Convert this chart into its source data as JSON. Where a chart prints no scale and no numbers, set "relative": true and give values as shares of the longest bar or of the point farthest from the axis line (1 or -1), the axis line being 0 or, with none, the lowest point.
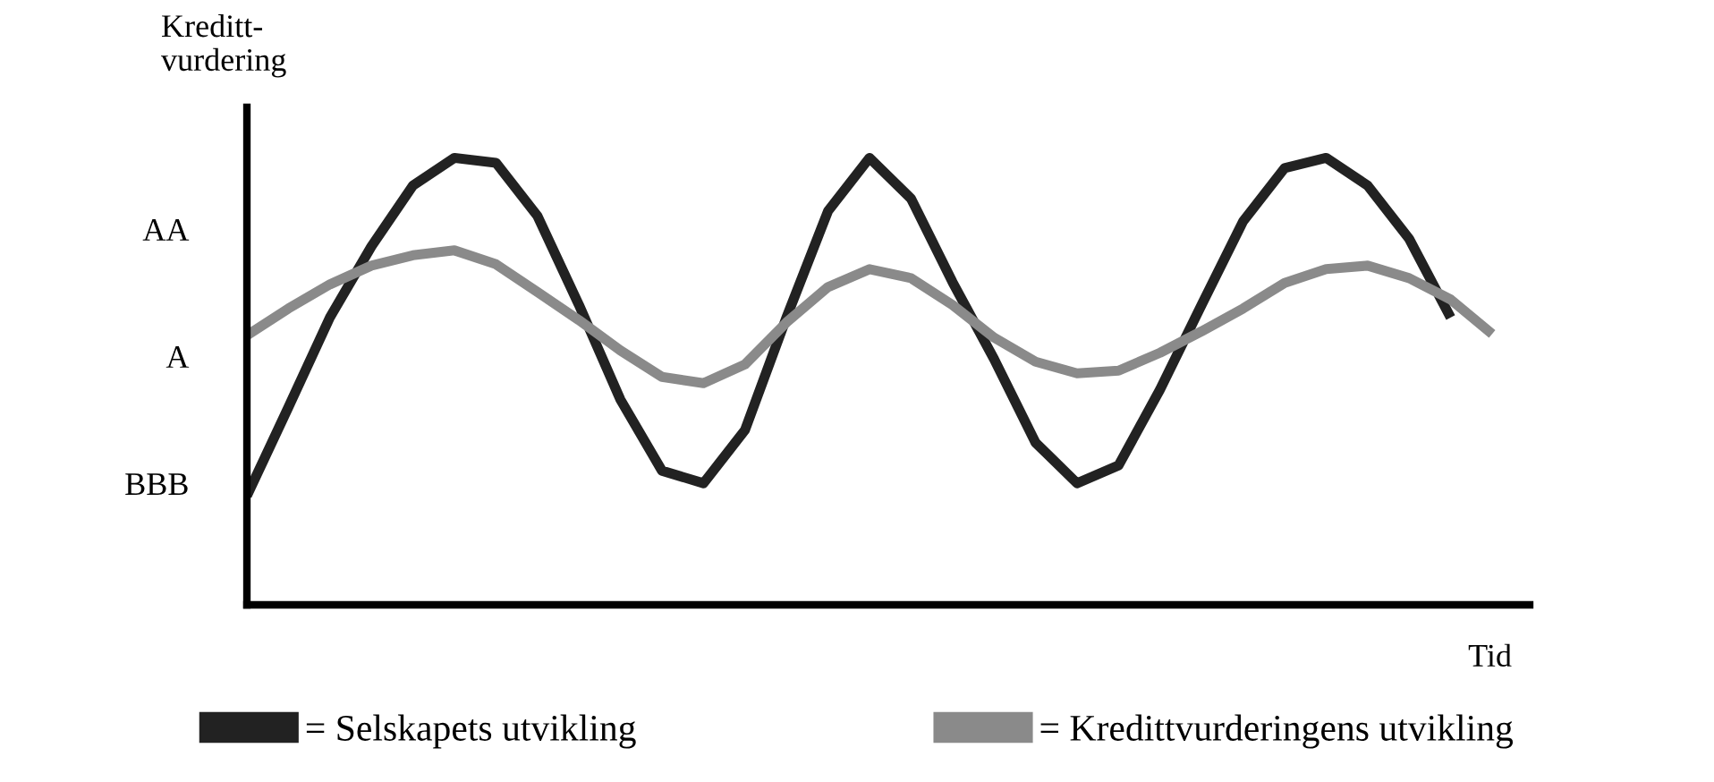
{
  "chart_data": {
    "type": "line",
    "xlabel": "Tid",
    "ylabel": "Kreditt-\nvurdering",
    "relative": true,
    "categories": [
      null,
      null,
      null,
      null,
      null,
      null,
      null,
      null,
      null,
      null,
      null,
      null,
      null,
      null,
      null,
      null,
      null,
      null,
      null,
      null,
      null,
      null,
      null,
      null,
      null,
      null,
      null,
      null,
      null,
      null,
      null
    ],
    "series": [
      {
        "name": "= Selskapets utvikling",
        "color": "#222222",
        "values": [
          0.244,
          0.442,
          0.643,
          0.802,
          0.938,
          1,
          0.989,
          0.87,
          0.671,
          0.459,
          0.3,
          0.272,
          0.391,
          0.643,
          0.881,
          1,
          0.909,
          0.722,
          0.55,
          0.363,
          0.272,
          0.312,
          0.482,
          0.671,
          0.858,
          0.977,
          1,
          0.938,
          0.819,
          0.643,
          null
        ]
      },
      {
        "name": "= Kredittvurderingens utvikling",
        "color": "#8a8a8a",
        "values": [
          0.603,
          0.663,
          0.717,
          0.759,
          0.782,
          0.793,
          0.762,
          0.7,
          0.637,
          0.569,
          0.51,
          0.496,
          0.538,
          0.632,
          0.711,
          0.751,
          0.731,
          0.671,
          0.598,
          0.544,
          0.518,
          0.524,
          0.564,
          0.612,
          0.663,
          0.72,
          0.751,
          0.759,
          0.731,
          0.683,
          0.606
        ]
      }
    ],
    "annotations": [
      "AA",
      "A",
      "BBB"
    ],
    "legend": "bottom",
    "marker": "none",
    "line_style": "solid"
  }
}
